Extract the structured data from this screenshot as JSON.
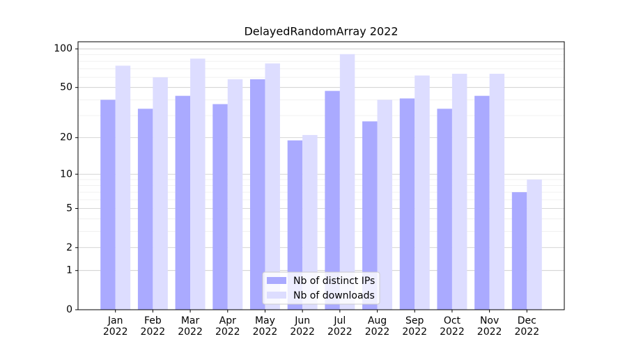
{
  "chart_data": {
    "type": "bar",
    "title": "DelayedRandomArray 2022",
    "categories": [
      "Jan\n2022",
      "Feb\n2022",
      "Mar\n2022",
      "Apr\n2022",
      "May\n2022",
      "Jun\n2022",
      "Jul\n2022",
      "Aug\n2022",
      "Sep\n2022",
      "Oct\n2022",
      "Nov\n2022",
      "Dec\n2022"
    ],
    "series": [
      {
        "name": "Nb of distinct IPs",
        "color": "#aaaaff",
        "values": [
          40,
          34,
          43,
          37,
          58,
          19,
          47,
          27,
          41,
          34,
          43,
          7
        ]
      },
      {
        "name": "Nb of downloads",
        "color": "#ddddff",
        "values": [
          74,
          60,
          84,
          58,
          77,
          21,
          91,
          40,
          62,
          64,
          64,
          9
        ]
      }
    ],
    "y_scale": "log1p",
    "ylim": [
      0,
      113.5
    ],
    "yticks": [
      0,
      1,
      2,
      5,
      10,
      20,
      50,
      100
    ],
    "minor_yticks": [
      3,
      4,
      6,
      7,
      8,
      9,
      30,
      40,
      60,
      70,
      80,
      90
    ],
    "grid": true,
    "legend_position": "lower center"
  }
}
